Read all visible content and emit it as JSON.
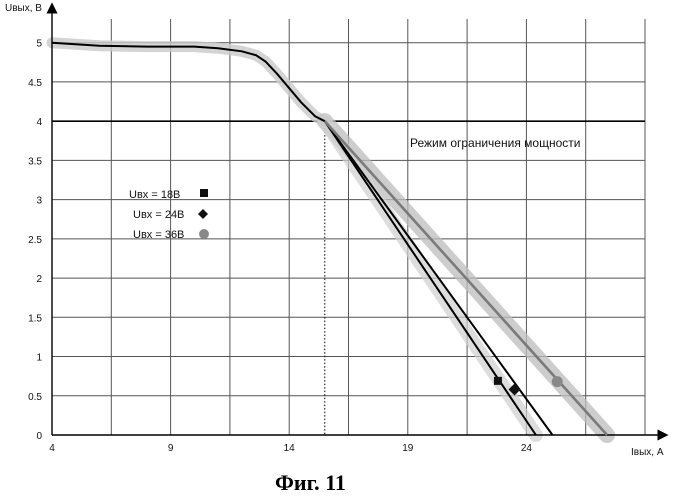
{
  "chart_data": {
    "type": "line",
    "xlabel": "Iвых, А",
    "ylabel": "Uвых, В",
    "xlim": [
      4,
      29
    ],
    "ylim": [
      0,
      5.2
    ],
    "xticks": [
      4,
      9,
      14,
      19,
      24
    ],
    "yticks": [
      0,
      0.5,
      1,
      1.5,
      2,
      2.5,
      3,
      3.5,
      4,
      4.5,
      5
    ],
    "x_tick_labels": [
      "4",
      "9",
      "14",
      "19",
      "24"
    ],
    "y_tick_labels": [
      "0",
      "0.5",
      "1",
      "1.5",
      "2",
      "2.5",
      "3",
      "3.5",
      "4",
      "4.5",
      "5"
    ],
    "grid": true,
    "x_grid": [
      6.5,
      9,
      11.5,
      14,
      16.5,
      19,
      21.5,
      24,
      26.5,
      29
    ],
    "y_grid": [
      0,
      0.5,
      1,
      1.5,
      2,
      2.5,
      3,
      3.5,
      4,
      4.5,
      5
    ],
    "threshold_y": 4,
    "reference_x": 15.5,
    "annotation": "Режим ограничения мощности",
    "common_curve": {
      "x": [
        4,
        6,
        8,
        10,
        11,
        12,
        12.6,
        13,
        13.5,
        14,
        14.5,
        15.1,
        15.5
      ],
      "y": [
        5.0,
        4.96,
        4.95,
        4.95,
        4.93,
        4.89,
        4.84,
        4.76,
        4.6,
        4.42,
        4.24,
        4.06,
        4.0
      ]
    },
    "series": [
      {
        "name": "Uвх = 18В",
        "marker": "square",
        "color": "#111111",
        "x": [
          15.5,
          24.4
        ],
        "y": [
          4.0,
          0.0
        ],
        "marker_point": [
          22.8,
          0.69
        ]
      },
      {
        "name": "Uвх = 24В",
        "marker": "diamond",
        "color": "#111111",
        "x": [
          15.5,
          25.1
        ],
        "y": [
          4.0,
          0.0
        ],
        "marker_point": [
          23.5,
          0.58
        ]
      },
      {
        "name": "Uвх = 36В",
        "marker": "circle",
        "color": "#777777",
        "x": [
          15.5,
          27.4
        ],
        "y": [
          4.0,
          0.0
        ],
        "marker_point": [
          25.3,
          0.68
        ]
      }
    ]
  },
  "caption": "Фиг. 11"
}
